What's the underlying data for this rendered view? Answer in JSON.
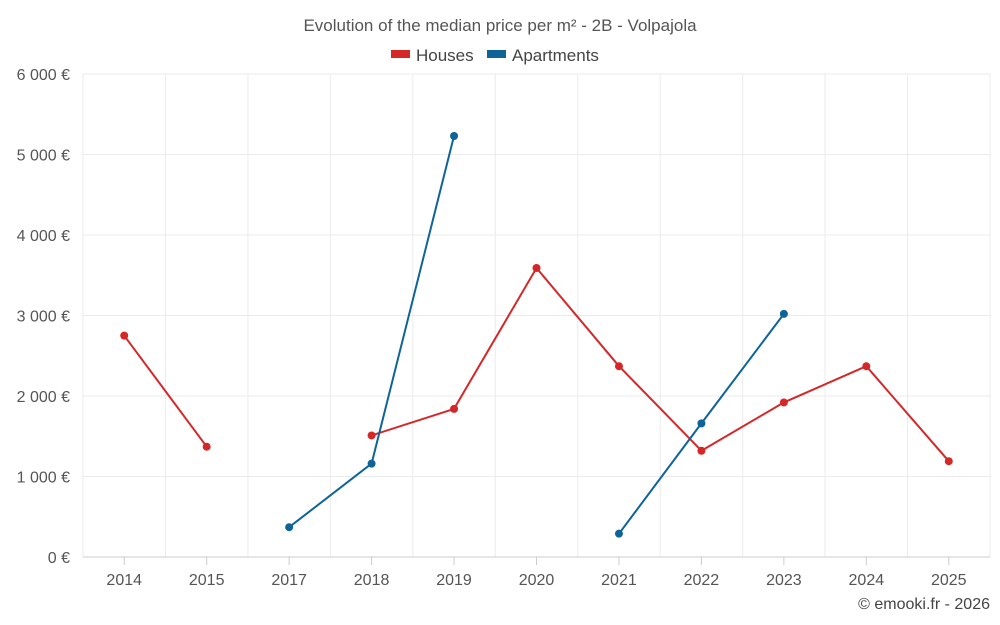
{
  "chart_data": {
    "type": "line",
    "title": "Evolution of the median price per m² - 2B - Volpajola",
    "categories": [
      "2014",
      "2015",
      "2017",
      "2018",
      "2019",
      "2020",
      "2021",
      "2022",
      "2023",
      "2024",
      "2025"
    ],
    "y_ticks": [
      "0 €",
      "1 000 €",
      "2 000 €",
      "3 000 €",
      "4 000 €",
      "5 000 €",
      "6 000 €"
    ],
    "ylim": [
      0,
      6000
    ],
    "y_step": 1000,
    "grid": true,
    "legend_position": "top-center",
    "series": [
      {
        "name": "Houses",
        "color": "#d62728",
        "values": [
          2750,
          1370,
          null,
          1510,
          1840,
          3590,
          2370,
          1320,
          1920,
          2370,
          1190
        ]
      },
      {
        "name": "Apartments",
        "color": "#0e6499",
        "values": [
          null,
          null,
          370,
          1160,
          5230,
          null,
          290,
          1660,
          3020,
          null,
          null
        ]
      }
    ],
    "credit": "© emooki.fr - 2026"
  }
}
